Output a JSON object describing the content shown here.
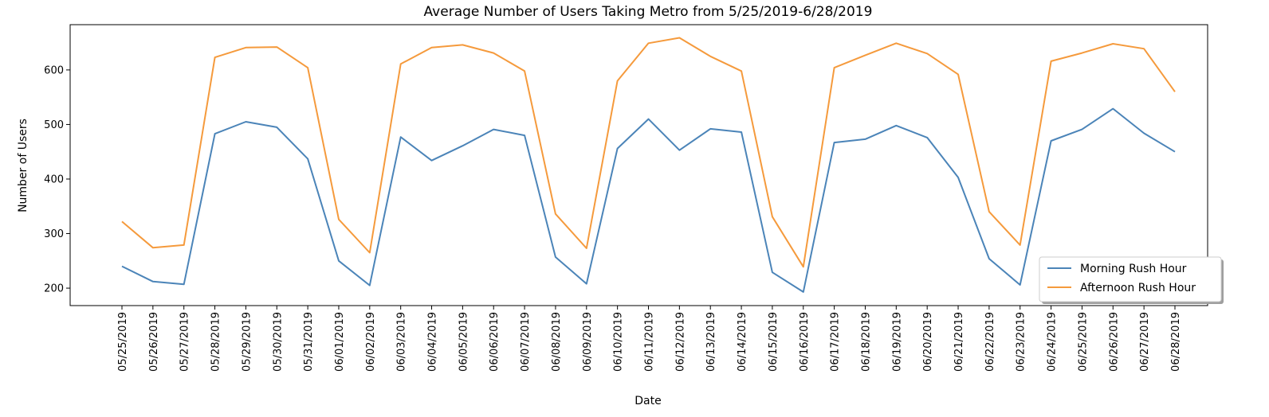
{
  "chart_data": {
    "type": "line",
    "title": "Average Number of Users Taking Metro from 5/25/2019-6/28/2019",
    "xlabel": "Date",
    "ylabel": "Number of Users",
    "ylim": [
      168,
      683
    ],
    "yticks": [
      200,
      300,
      400,
      500,
      600
    ],
    "grid": false,
    "legend_position": "bottom-right",
    "categories": [
      "05/25/2019",
      "05/26/2019",
      "05/27/2019",
      "05/28/2019",
      "05/29/2019",
      "05/30/2019",
      "05/31/2019",
      "06/01/2019",
      "06/02/2019",
      "06/03/2019",
      "06/04/2019",
      "06/05/2019",
      "06/06/2019",
      "06/07/2019",
      "06/08/2019",
      "06/09/2019",
      "06/10/2019",
      "06/11/2019",
      "06/12/2019",
      "06/13/2019",
      "06/14/2019",
      "06/15/2019",
      "06/16/2019",
      "06/17/2019",
      "06/18/2019",
      "06/19/2019",
      "06/20/2019",
      "06/21/2019",
      "06/22/2019",
      "06/23/2019",
      "06/24/2019",
      "06/25/2019",
      "06/26/2019",
      "06/27/2019",
      "06/28/2019"
    ],
    "series": [
      {
        "name": "Morning Rush Hour",
        "color": "#4b84b8",
        "values": [
          240,
          212,
          207,
          483,
          505,
          495,
          437,
          250,
          205,
          477,
          434,
          461,
          491,
          480,
          257,
          208,
          456,
          510,
          453,
          492,
          486,
          229,
          193,
          467,
          473,
          498,
          476,
          403,
          254,
          206,
          470,
          491,
          529,
          484,
          450
        ]
      },
      {
        "name": "Afternoon Rush Hour",
        "color": "#f59a3c",
        "values": [
          322,
          274,
          279,
          623,
          641,
          642,
          604,
          326,
          265,
          611,
          641,
          646,
          631,
          598,
          336,
          273,
          580,
          649,
          659,
          625,
          598,
          331,
          239,
          604,
          627,
          649,
          630,
          592,
          340,
          279,
          616,
          631,
          648,
          639,
          560
        ]
      }
    ]
  }
}
